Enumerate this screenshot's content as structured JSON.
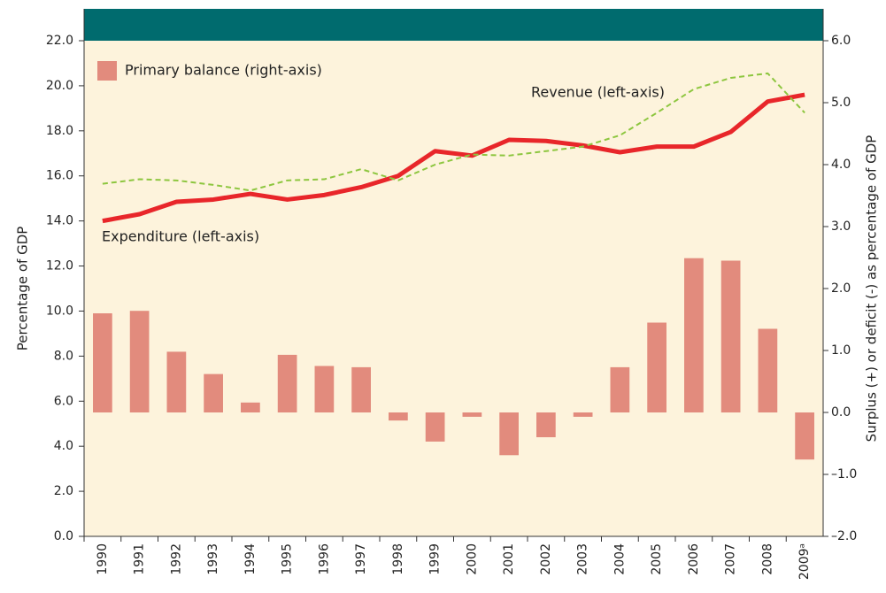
{
  "chart_data": {
    "type": "bar",
    "categories": [
      "1990",
      "1991",
      "1992",
      "1993",
      "1994",
      "1995",
      "1996",
      "1997",
      "1998",
      "1999",
      "2000",
      "2001",
      "2002",
      "2003",
      "2004",
      "2005",
      "2006",
      "2007",
      "2008",
      "2009ᵃ"
    ],
    "series": [
      {
        "name": "Primary balance (right-axis)",
        "type": "bar",
        "axis": "y2",
        "color": "#e28b7d",
        "values": [
          1.6,
          1.64,
          0.98,
          0.62,
          0.16,
          0.93,
          0.75,
          0.73,
          -0.13,
          -0.47,
          -0.07,
          -0.69,
          -0.4,
          -0.07,
          0.73,
          1.45,
          2.49,
          2.45,
          1.35,
          -0.76
        ]
      },
      {
        "name": "Expenditure (left-axis)",
        "type": "line",
        "color": "#e8262a",
        "dashed": false,
        "values": [
          14.0,
          14.3,
          14.85,
          14.95,
          15.2,
          14.95,
          15.15,
          15.5,
          16.0,
          17.1,
          16.9,
          17.6,
          17.55,
          17.35,
          17.05,
          17.3,
          17.3,
          17.95,
          19.3,
          19.6
        ]
      },
      {
        "name": "Revenue (left-axis)",
        "type": "line",
        "color": "#8dc63f",
        "dashed": true,
        "values": [
          15.65,
          15.85,
          15.8,
          15.6,
          15.35,
          15.8,
          15.85,
          16.3,
          15.8,
          16.5,
          16.95,
          16.9,
          17.1,
          17.3,
          17.8,
          18.8,
          19.85,
          20.35,
          20.55,
          18.8
        ]
      }
    ],
    "y_label": "Percentage of GDP",
    "y2_label": "Surplus (+) or deficit (-) as percentage of GDP",
    "ylim": [
      0,
      22
    ],
    "yticks": [
      {
        "value": 0,
        "label": "0.0"
      },
      {
        "value": 2,
        "label": "2.0"
      },
      {
        "value": 4,
        "label": "4.0"
      },
      {
        "value": 6,
        "label": "6.0"
      },
      {
        "value": 8,
        "label": "8.0"
      },
      {
        "value": 10,
        "label": "10.0"
      },
      {
        "value": 12,
        "label": "12.0"
      },
      {
        "value": 14,
        "label": "14.0"
      },
      {
        "value": 16,
        "label": "16.0"
      },
      {
        "value": 18,
        "label": "18.0"
      },
      {
        "value": 20,
        "label": "20.0"
      },
      {
        "value": 22,
        "label": "22.0"
      }
    ],
    "y2lim": [
      -2,
      6
    ],
    "y2ticks": [
      {
        "value": -2,
        "label": "–2.0"
      },
      {
        "value": -1,
        "label": "–1.0"
      },
      {
        "value": 0,
        "label": "0.0"
      },
      {
        "value": 1,
        "label": "1.0"
      },
      {
        "value": 2,
        "label": "2.0"
      },
      {
        "value": 3,
        "label": "3.0"
      },
      {
        "value": 4,
        "label": "4.0"
      },
      {
        "value": 5,
        "label": "5.0"
      },
      {
        "value": 6,
        "label": "6.0"
      }
    ]
  }
}
